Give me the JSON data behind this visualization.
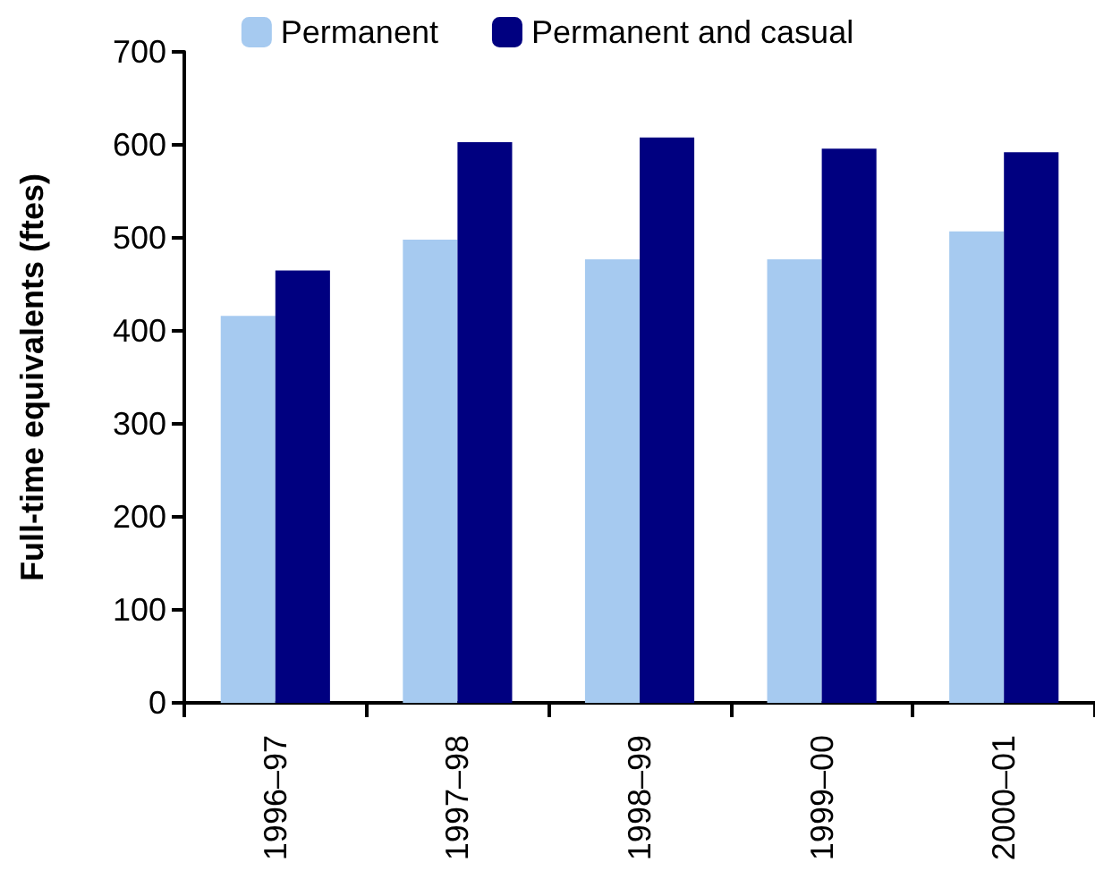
{
  "chart_data": {
    "type": "bar",
    "ylabel": "Full-time equivalents (ftes)",
    "categories": [
      "1996–97",
      "1997–98",
      "1998–99",
      "1999–00",
      "2000–01"
    ],
    "series": [
      {
        "name": "Permanent",
        "color": "#a6caf0",
        "values": [
          416,
          498,
          477,
          477,
          507
        ]
      },
      {
        "name": "Permanent and casual",
        "color": "#000080",
        "values": [
          465,
          603,
          608,
          596,
          592
        ]
      }
    ],
    "ylim": [
      0,
      700
    ],
    "yticks": [
      0,
      100,
      200,
      300,
      400,
      500,
      600,
      700
    ],
    "grid": false,
    "legend": "top"
  }
}
